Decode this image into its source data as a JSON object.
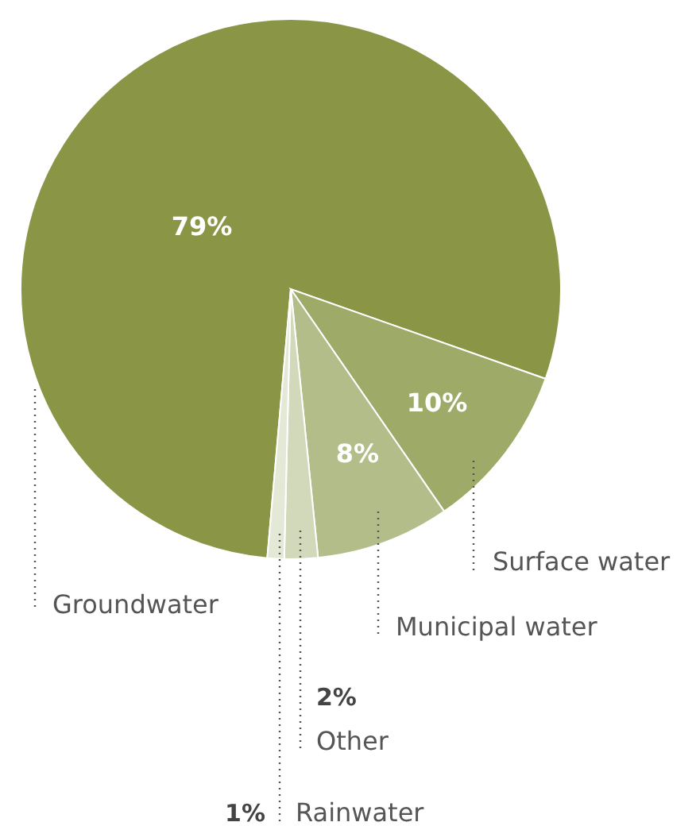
{
  "chart_data": {
    "type": "pie",
    "categories": [
      "Groundwater",
      "Surface water",
      "Municipal water",
      "Other",
      "Rainwater"
    ],
    "values": [
      79,
      10,
      8,
      2,
      1
    ],
    "value_labels": [
      "79%",
      "10%",
      "8%",
      "2%",
      "1%"
    ],
    "colors": [
      "#8a9645",
      "#9eaa68",
      "#b3bd8a",
      "#d2d8ba",
      "#e4e8d6"
    ]
  }
}
